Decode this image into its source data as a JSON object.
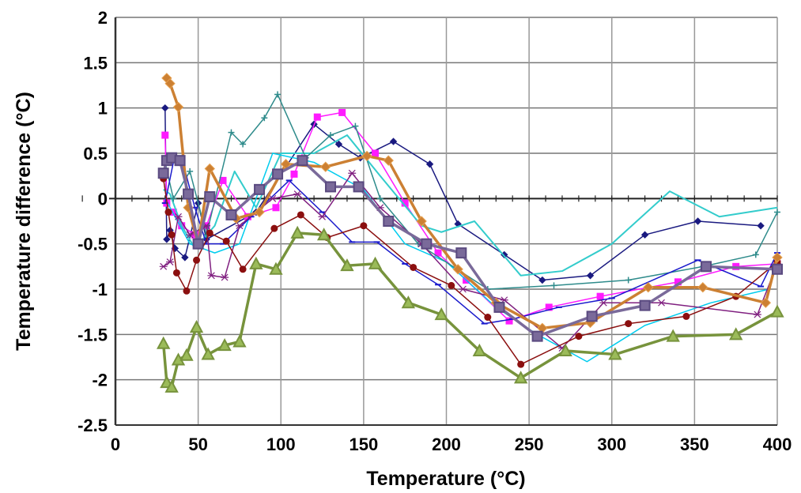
{
  "chart_data": {
    "type": "line",
    "title": "",
    "xlabel": "Temperature (°C)",
    "ylabel": "Temperature difference (°C)",
    "xlim": [
      0,
      400
    ],
    "ylim": [
      -2.5,
      2
    ],
    "grid": true,
    "legend": "none",
    "x_ticks": [
      "0",
      "50",
      "100",
      "150",
      "200",
      "250",
      "300",
      "350",
      "400"
    ],
    "y_ticks": [
      "2",
      "1.5",
      "1",
      "0.5",
      "0",
      "-0.5",
      "-1",
      "-1.5",
      "-2",
      "-2.5"
    ],
    "series": [
      {
        "color": "#1a1a80",
        "marker": "diamond",
        "width": 1.5,
        "x": [
          30,
          31,
          33,
          36,
          42,
          50,
          55,
          85,
          120,
          135,
          148,
          168,
          190,
          207,
          235,
          258,
          287,
          320,
          352,
          390
        ],
        "y": [
          1.0,
          -0.45,
          -0.35,
          -0.55,
          -0.65,
          -0.05,
          -0.45,
          -0.15,
          0.82,
          0.6,
          0.45,
          0.63,
          0.38,
          -0.28,
          -0.62,
          -0.9,
          -0.85,
          -0.4,
          -0.25,
          -0.3
        ]
      },
      {
        "color": "#ff1aff",
        "marker": "square",
        "width": 1.5,
        "x": [
          30,
          31,
          35,
          40,
          48,
          55,
          65,
          80,
          97,
          108,
          122,
          137,
          157,
          175,
          195,
          212,
          238,
          262,
          293,
          340,
          375,
          400
        ],
        "y": [
          0.7,
          -0.05,
          -0.15,
          -0.3,
          -0.4,
          -0.3,
          0.2,
          -0.2,
          -0.1,
          0.27,
          0.9,
          0.95,
          0.5,
          -0.05,
          -0.6,
          -0.9,
          -1.35,
          -1.2,
          -1.08,
          -0.92,
          -0.75,
          -0.72
        ]
      },
      {
        "color": "#33cccc",
        "marker": "none",
        "width": 2,
        "x": [
          29,
          33,
          40,
          48,
          60,
          72,
          85,
          100,
          120,
          140,
          160,
          185,
          197,
          217,
          245,
          270,
          300,
          335,
          365,
          400
        ],
        "y": [
          0.1,
          0.05,
          -0.3,
          -0.55,
          -0.3,
          0.3,
          -0.1,
          0.5,
          0.5,
          0.7,
          0.25,
          -0.3,
          -0.37,
          -0.25,
          -0.85,
          -0.8,
          -0.5,
          0.08,
          -0.2,
          -0.1
        ]
      },
      {
        "color": "#00ccee",
        "marker": "none",
        "width": 1.5,
        "x": [
          30,
          45,
          60,
          75,
          95,
          120,
          150,
          175,
          200,
          230,
          255,
          285,
          320,
          360,
          395,
          400
        ],
        "y": [
          0,
          -0.5,
          -0.6,
          -0.5,
          0.5,
          0.4,
          0.1,
          -0.5,
          -0.7,
          -1.2,
          -1.5,
          -1.8,
          -1.4,
          -1.15,
          -1.0,
          -0.6
        ]
      },
      {
        "color": "#2e8b8b",
        "marker": "plus",
        "width": 1.5,
        "x": [
          30,
          35,
          45,
          55,
          70,
          77,
          90,
          98,
          115,
          130,
          145,
          160,
          183,
          225,
          265,
          310,
          355,
          387,
          400
        ],
        "y": [
          0.4,
          0.0,
          0.3,
          -0.4,
          0.73,
          0.6,
          0.89,
          1.15,
          0.45,
          0.7,
          0.8,
          0.0,
          -0.5,
          -1.0,
          -0.96,
          -0.9,
          -0.75,
          -0.62,
          -0.15
        ]
      },
      {
        "color": "#1a1acc",
        "marker": "dash",
        "width": 1.5,
        "x": [
          30,
          35,
          40,
          48,
          55,
          65,
          82,
          105,
          125,
          143,
          158,
          175,
          195,
          223,
          240,
          268,
          300,
          352,
          390,
          400
        ],
        "y": [
          -0.05,
          0.4,
          0.45,
          -0.1,
          -0.5,
          -0.5,
          -0.2,
          0.2,
          -0.15,
          -0.48,
          -0.48,
          -0.72,
          -0.95,
          -1.38,
          -1.33,
          -1.2,
          -1.1,
          -0.68,
          -0.97,
          -0.6
        ]
      },
      {
        "color": "#802080",
        "marker": "star",
        "width": 1.5,
        "x": [
          29,
          33,
          38,
          45,
          55,
          58,
          66,
          75,
          95,
          110,
          125,
          143,
          160,
          185,
          210,
          235,
          270,
          295,
          330,
          388,
          400
        ],
        "y": [
          -0.75,
          -0.7,
          -0.2,
          -0.4,
          -0.3,
          -0.85,
          -0.87,
          -0.3,
          0.0,
          0.05,
          -0.2,
          0.28,
          -0.1,
          -0.5,
          -1.0,
          -1.12,
          -1.65,
          -1.15,
          -1.15,
          -1.28,
          -0.72
        ]
      },
      {
        "color": "#8b0f0f",
        "marker": "circle",
        "width": 1.5,
        "x": [
          29,
          32,
          34,
          37,
          43,
          49,
          57,
          67,
          77,
          96,
          112,
          128,
          150,
          180,
          203,
          225,
          245,
          280,
          310,
          345,
          375,
          400
        ],
        "y": [
          0.22,
          -0.15,
          -0.4,
          -0.82,
          -1.02,
          -0.68,
          -0.38,
          -0.47,
          -0.78,
          -0.33,
          -0.18,
          -0.43,
          -0.3,
          -0.76,
          -0.96,
          -1.31,
          -1.83,
          -1.52,
          -1.38,
          -1.3,
          -1.08,
          -0.7
        ]
      },
      {
        "color": "#77933c",
        "marker": "triangle",
        "width": 3.5,
        "x": [
          29,
          31,
          34,
          38,
          43,
          49,
          56,
          66,
          75,
          85,
          97,
          110,
          126,
          140,
          157,
          177,
          197,
          220,
          245,
          272,
          302,
          337,
          375,
          400
        ],
        "y": [
          -1.6,
          -2.03,
          -2.08,
          -1.78,
          -1.73,
          -1.42,
          -1.72,
          -1.62,
          -1.58,
          -0.72,
          -0.78,
          -0.38,
          -0.4,
          -0.74,
          -0.72,
          -1.15,
          -1.28,
          -1.68,
          -1.98,
          -1.68,
          -1.72,
          -1.52,
          -1.5,
          -1.25
        ]
      },
      {
        "color": "#cc8033",
        "marker": "diamond",
        "width": 3.5,
        "x": [
          31,
          33,
          38,
          44,
          50,
          57,
          73,
          87,
          103,
          127,
          152,
          165,
          185,
          207,
          230,
          258,
          287,
          322,
          355,
          393,
          400
        ],
        "y": [
          1.33,
          1.27,
          1.01,
          -0.1,
          -0.5,
          0.33,
          -0.22,
          -0.15,
          0.38,
          0.35,
          0.47,
          0.42,
          -0.25,
          -0.78,
          -1.15,
          -1.43,
          -1.37,
          -0.98,
          -0.98,
          -1.15,
          -0.65
        ]
      },
      {
        "color": "#7a6a9a",
        "marker": "square",
        "width": 3.5,
        "x": [
          29,
          31,
          34,
          39,
          44,
          50,
          57,
          70,
          87,
          98,
          113,
          130,
          147,
          165,
          188,
          209,
          232,
          255,
          288,
          320,
          357,
          400
        ],
        "y": [
          0.28,
          0.42,
          0.45,
          0.42,
          0.05,
          -0.5,
          0.02,
          -0.18,
          0.1,
          0.27,
          0.42,
          0.13,
          0.13,
          -0.25,
          -0.5,
          -0.6,
          -1.2,
          -1.52,
          -1.3,
          -1.18,
          -0.75,
          -0.78
        ]
      }
    ]
  }
}
